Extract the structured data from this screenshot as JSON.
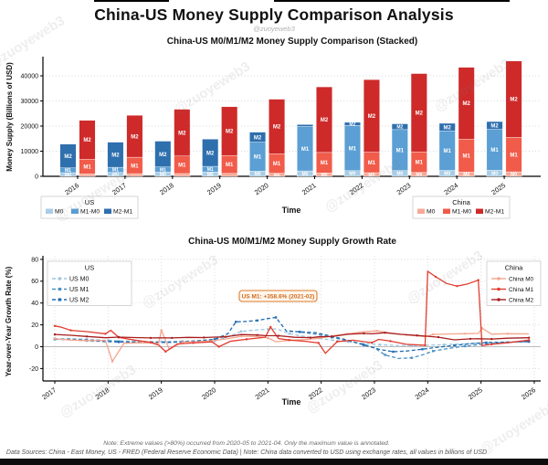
{
  "page": {
    "main_title": "China-US Money Supply Comparison Analysis",
    "watermark": "@zuoyeweb3",
    "note_line1": "Note: Extreme values (>80%) occurred from 2020-05 to 2021-04. Only the maximum value is annotated.",
    "note_line2": "Data Sources: China - East Money, US - FRED (Federal Reserve Economic Data) | Note: China data converted to USD using exchange rates, all values in billions of USD"
  },
  "colors": {
    "us_m0": "#a9cde6",
    "us_m1": "#5b9fd4",
    "us_m2": "#2e6fae",
    "cn_m0": "#f6a996",
    "cn_m1": "#f15b4a",
    "cn_m2": "#ce2a2a",
    "us_line_m0": "#9dc6e0",
    "us_line_m1": "#4a90c4",
    "us_line_m2": "#1f6cb0",
    "cn_line_m0": "#f4a58e",
    "cn_line_m1": "#e23b2e",
    "cn_line_m2": "#a81e1e",
    "annotation_border": "#e07b28",
    "annotation_text": "#d2691e",
    "annotation_bg": "#fdf6ec",
    "grid": "#cccccc",
    "zero_line": "#bbbbbb",
    "axis": "#000000"
  },
  "chart_data": [
    {
      "type": "bar",
      "stacked": true,
      "title": "China-US M0/M1/M2 Money Supply Comparison (Stacked)",
      "xlabel": "Time",
      "ylabel": "Money Supply (Billions of USD)",
      "ylim": [
        0,
        47000
      ],
      "yticks": [
        0,
        10000,
        20000,
        30000,
        40000
      ],
      "grid": "horizontal-dotted",
      "categories": [
        "2016",
        "2017",
        "2018",
        "2019",
        "2020",
        "2021",
        "2022",
        "2023",
        "2024",
        "2025"
      ],
      "units": "billions of USD, cumulative totals (M0 <= M1 <= M2)",
      "us": {
        "M0": [
          1450,
          1570,
          1670,
          1760,
          2050,
          2150,
          2250,
          2300,
          2350,
          2400
        ],
        "M1": [
          3350,
          3600,
          3750,
          3980,
          13600,
          19800,
          20200,
          18600,
          18100,
          18700
        ],
        "M2": [
          12800,
          13600,
          14000,
          14800,
          17600,
          20600,
          21500,
          20900,
          21100,
          21800
        ]
      },
      "china": {
        "M0": [
          1000,
          1060,
          1100,
          1150,
          1230,
          1350,
          1450,
          1550,
          1700,
          1800
        ],
        "M1": [
          6800,
          7600,
          8100,
          8300,
          9000,
          9500,
          9600,
          9700,
          14800,
          15500
        ],
        "M2": [
          22300,
          24300,
          26700,
          27700,
          30700,
          35600,
          38500,
          40900,
          43400,
          45900
        ]
      },
      "segment_labels": [
        "M0",
        "M1",
        "M2"
      ],
      "legend_us": {
        "title": "US",
        "entries": [
          "M0",
          "M1-M0",
          "M2-M1"
        ],
        "position": "bottom-left"
      },
      "legend_china": {
        "title": "China",
        "entries": [
          "M0",
          "M1-M0",
          "M2-M1"
        ],
        "position": "bottom-right"
      }
    },
    {
      "type": "line",
      "title": "China-US M0/M1/M2 Money Supply Growth Rate",
      "xlabel": "Time",
      "ylabel": "Year-over-Year Growth Rate (%)",
      "xticks": [
        2017,
        2018,
        2019,
        2020,
        2021,
        2022,
        2023,
        2024,
        2025,
        2026
      ],
      "yticks": [
        -20,
        0,
        20,
        40,
        60,
        80
      ],
      "ylim": [
        -31,
        82
      ],
      "grid": "both-dotted",
      "annotation": {
        "label": "US M1: +358.6% (2021-02)",
        "x": 2021.17,
        "y": 45
      },
      "legend_us": {
        "title": "US",
        "entries": [
          "US M0",
          "US M1",
          "US M2"
        ],
        "position": "upper-left"
      },
      "legend_china": {
        "title": "China",
        "entries": [
          "China M0",
          "China M1",
          "China M2"
        ],
        "position": "upper-right"
      },
      "series": [
        {
          "name": "US M0",
          "style": "dashed",
          "color_key": "us_line_m0",
          "points": [
            [
              2017,
              6.5
            ],
            [
              2017.25,
              6.8
            ],
            [
              2017.5,
              6.3
            ],
            [
              2017.75,
              6.0
            ],
            [
              2018,
              5.8
            ],
            [
              2018.25,
              5.3
            ],
            [
              2018.5,
              5.0
            ],
            [
              2018.75,
              4.7
            ],
            [
              2019,
              4.6
            ],
            [
              2019.25,
              4.5
            ],
            [
              2019.5,
              4.8
            ],
            [
              2019.75,
              5.0
            ],
            [
              2020,
              5.3
            ],
            [
              2020.25,
              9.0
            ],
            [
              2020.5,
              14.0
            ],
            [
              2020.75,
              15.2
            ],
            [
              2021,
              16.0
            ],
            [
              2021.17,
              16.3
            ],
            [
              2021.4,
              12.0
            ],
            [
              2021.6,
              10.0
            ],
            [
              2021.9,
              8.0
            ],
            [
              2022.2,
              6.0
            ],
            [
              2022.5,
              4.5
            ],
            [
              2022.8,
              3.0
            ],
            [
              2023.1,
              1.8
            ],
            [
              2023.4,
              1.2
            ],
            [
              2023.7,
              1.0
            ],
            [
              2024,
              1.3
            ],
            [
              2024.3,
              1.8
            ],
            [
              2024.6,
              2.4
            ],
            [
              2024.9,
              3.0
            ],
            [
              2025.2,
              3.5
            ],
            [
              2025.5,
              4.0
            ],
            [
              2025.9,
              4.3
            ]
          ]
        },
        {
          "name": "US M1",
          "style": "dashed",
          "color_key": "us_line_m1",
          "points": [
            [
              2017,
              7.0
            ],
            [
              2017.3,
              7.2
            ],
            [
              2017.6,
              6.5
            ],
            [
              2017.9,
              5.8
            ],
            [
              2018.2,
              4.8
            ],
            [
              2018.5,
              4.3
            ],
            [
              2018.8,
              4.0
            ],
            [
              2019.1,
              3.8
            ],
            [
              2019.4,
              4.3
            ],
            [
              2019.7,
              5.2
            ],
            [
              2020,
              6.4
            ],
            [
              2020.2,
              10.0
            ],
            [
              2020.3,
              null
            ],
            [
              2021.4,
              14.5
            ],
            [
              2021.6,
              13.5
            ],
            [
              2021.9,
              11.5
            ],
            [
              2022.2,
              8.5
            ],
            [
              2022.5,
              5.5
            ],
            [
              2022.8,
              2.0
            ],
            [
              2023,
              -1.0
            ],
            [
              2023.2,
              -7.5
            ],
            [
              2023.45,
              -10.8
            ],
            [
              2023.7,
              -10.2
            ],
            [
              2023.9,
              -7.5
            ],
            [
              2024.1,
              -4.0
            ],
            [
              2024.4,
              -1.5
            ],
            [
              2024.7,
              0.5
            ],
            [
              2025,
              2.0
            ],
            [
              2025.3,
              3.2
            ],
            [
              2025.6,
              4.2
            ],
            [
              2025.9,
              5.0
            ]
          ]
        },
        {
          "name": "US M2",
          "style": "dashed",
          "color_key": "us_line_m2",
          "points": [
            [
              2017,
              7.2
            ],
            [
              2017.3,
              6.3
            ],
            [
              2017.6,
              5.5
            ],
            [
              2017.9,
              4.8
            ],
            [
              2018.2,
              4.3
            ],
            [
              2018.5,
              4.1
            ],
            [
              2018.8,
              4.0
            ],
            [
              2019.1,
              4.3
            ],
            [
              2019.4,
              4.7
            ],
            [
              2019.7,
              5.5
            ],
            [
              2020,
              6.8
            ],
            [
              2020.25,
              12.0
            ],
            [
              2020.4,
              22.8
            ],
            [
              2020.6,
              23.2
            ],
            [
              2020.8,
              24.0
            ],
            [
              2021,
              25.8
            ],
            [
              2021.15,
              26.8
            ],
            [
              2021.35,
              14.2
            ],
            [
              2021.6,
              13.6
            ],
            [
              2021.9,
              12.8
            ],
            [
              2022.2,
              9.5
            ],
            [
              2022.5,
              6.0
            ],
            [
              2022.8,
              1.5
            ],
            [
              2023.1,
              -2.5
            ],
            [
              2023.35,
              -4.6
            ],
            [
              2023.6,
              -4.0
            ],
            [
              2023.9,
              -2.3
            ],
            [
              2024.2,
              -0.4
            ],
            [
              2024.5,
              1.2
            ],
            [
              2024.8,
              2.8
            ],
            [
              2025.1,
              3.8
            ],
            [
              2025.5,
              4.3
            ],
            [
              2025.9,
              4.6
            ]
          ]
        },
        {
          "name": "China M0",
          "style": "solid",
          "color_key": "cn_line_m0",
          "points": [
            [
              2017,
              7.2
            ],
            [
              2017.3,
              6.1
            ],
            [
              2017.6,
              5.6
            ],
            [
              2017.95,
              5.8
            ],
            [
              2018.08,
              -13.5
            ],
            [
              2018.3,
              3.2
            ],
            [
              2018.6,
              3.6
            ],
            [
              2018.95,
              3.0
            ],
            [
              2019,
              15.0
            ],
            [
              2019.15,
              -2.5
            ],
            [
              2019.4,
              4.3
            ],
            [
              2019.7,
              4.6
            ],
            [
              2019.95,
              5.4
            ],
            [
              2020.2,
              7.0
            ],
            [
              2020.5,
              9.5
            ],
            [
              2020.8,
              9.3
            ],
            [
              2021,
              8.0
            ],
            [
              2021.15,
              4.5
            ],
            [
              2021.4,
              5.8
            ],
            [
              2021.7,
              6.5
            ],
            [
              2021.95,
              7.7
            ],
            [
              2022.2,
              9.9
            ],
            [
              2022.5,
              11.8
            ],
            [
              2022.8,
              13.6
            ],
            [
              2023.05,
              14.5
            ],
            [
              2023.3,
              12.5
            ],
            [
              2023.6,
              10.8
            ],
            [
              2023.95,
              9.2
            ],
            [
              2024.1,
              11.2
            ],
            [
              2024.4,
              11.6
            ],
            [
              2024.7,
              11.9
            ],
            [
              2024.95,
              12.2
            ],
            [
              2025.02,
              17.0
            ],
            [
              2025.2,
              11.5
            ],
            [
              2025.5,
              11.9
            ],
            [
              2025.9,
              11.7
            ]
          ]
        },
        {
          "name": "China M1",
          "style": "solid",
          "color_key": "cn_line_m1",
          "points": [
            [
              2017,
              19.0
            ],
            [
              2017.1,
              18.2
            ],
            [
              2017.3,
              15.0
            ],
            [
              2017.6,
              13.8
            ],
            [
              2017.95,
              11.8
            ],
            [
              2018.05,
              15.0
            ],
            [
              2018.2,
              8.5
            ],
            [
              2018.5,
              6.0
            ],
            [
              2018.8,
              4.0
            ],
            [
              2018.95,
              1.5
            ],
            [
              2019.08,
              -4.5
            ],
            [
              2019.3,
              2.5
            ],
            [
              2019.6,
              3.4
            ],
            [
              2019.95,
              4.4
            ],
            [
              2020.08,
              0.0
            ],
            [
              2020.3,
              5.0
            ],
            [
              2020.6,
              6.8
            ],
            [
              2020.95,
              8.6
            ],
            [
              2021.05,
              18.0
            ],
            [
              2021.2,
              7.4
            ],
            [
              2021.4,
              6.1
            ],
            [
              2021.7,
              4.9
            ],
            [
              2021.95,
              3.5
            ],
            [
              2022.08,
              -6.0
            ],
            [
              2022.3,
              4.6
            ],
            [
              2022.6,
              5.9
            ],
            [
              2022.95,
              3.7
            ],
            [
              2023.08,
              6.7
            ],
            [
              2023.3,
              5.1
            ],
            [
              2023.6,
              2.2
            ],
            [
              2023.95,
              1.3
            ],
            [
              2024.0,
              69.0
            ],
            [
              2024.15,
              64.0
            ],
            [
              2024.35,
              58.0
            ],
            [
              2024.55,
              55.5
            ],
            [
              2024.75,
              57.5
            ],
            [
              2024.95,
              61.0
            ],
            [
              2025.02,
              1.0
            ],
            [
              2025.2,
              2.2
            ],
            [
              2025.5,
              3.6
            ],
            [
              2025.9,
              6.0
            ]
          ]
        },
        {
          "name": "China M2",
          "style": "solid",
          "color_key": "cn_line_m2",
          "points": [
            [
              2017,
              11.2
            ],
            [
              2017.3,
              10.5
            ],
            [
              2017.6,
              9.4
            ],
            [
              2017.95,
              8.2
            ],
            [
              2018.2,
              8.8
            ],
            [
              2018.5,
              8.4
            ],
            [
              2018.8,
              8.0
            ],
            [
              2018.95,
              8.1
            ],
            [
              2019.2,
              8.0
            ],
            [
              2019.5,
              8.5
            ],
            [
              2019.8,
              8.4
            ],
            [
              2019.95,
              8.7
            ],
            [
              2020.2,
              9.0
            ],
            [
              2020.5,
              11.1
            ],
            [
              2020.8,
              10.7
            ],
            [
              2020.95,
              10.1
            ],
            [
              2021.2,
              10.0
            ],
            [
              2021.5,
              8.6
            ],
            [
              2021.8,
              8.3
            ],
            [
              2021.95,
              9.0
            ],
            [
              2022.2,
              9.3
            ],
            [
              2022.5,
              11.4
            ],
            [
              2022.8,
              12.1
            ],
            [
              2022.95,
              11.8
            ],
            [
              2023.2,
              12.8
            ],
            [
              2023.5,
              11.3
            ],
            [
              2023.8,
              10.3
            ],
            [
              2023.95,
              9.7
            ],
            [
              2024.2,
              8.7
            ],
            [
              2024.5,
              6.3
            ],
            [
              2024.8,
              7.2
            ],
            [
              2024.95,
              7.3
            ],
            [
              2025.2,
              7.0
            ],
            [
              2025.5,
              7.8
            ],
            [
              2025.9,
              8.2
            ]
          ]
        }
      ]
    }
  ]
}
